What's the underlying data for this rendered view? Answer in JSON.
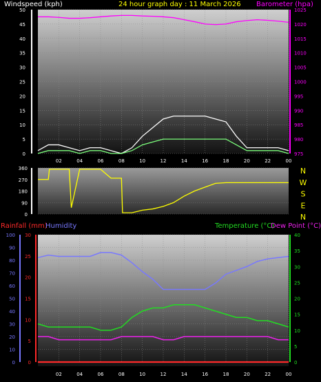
{
  "header": {
    "wind_label": "Windspeed (kph)",
    "title": "24 hour graph day : 11 March 2026",
    "baro_label": "Barometer (hpa)"
  },
  "lower_header": {
    "rain_label": "Rainfall (mm)",
    "hum_label": "Humidity",
    "temp_label": "Temperature (°C)",
    "dew_label": "Dew Point (°C)"
  },
  "colors": {
    "wind_label": "#ffffff",
    "title": "#ffff00",
    "barometer": "#ff00ff",
    "gust": "#ffffff",
    "wind_avg": "#7cff7c",
    "direction": "#ffff00",
    "rain": "#ff2a2a",
    "humidity": "#7878ff",
    "temperature": "#22dd22",
    "dewpoint": "#ee22ee"
  },
  "chart_data": [
    {
      "type": "line",
      "name": "wind-barometer",
      "x_ticks": [
        "02",
        "04",
        "06",
        "08",
        "10",
        "12",
        "14",
        "16",
        "18",
        "20",
        "22",
        "00"
      ],
      "left_axis": {
        "ticks": [
          "0",
          "5",
          "10",
          "15",
          "20",
          "25",
          "30",
          "35",
          "40",
          "45",
          "50"
        ],
        "ylim": [
          0,
          50
        ]
      },
      "right_axis": {
        "ticks": [
          "975",
          "980",
          "985",
          "990",
          "995",
          "1000",
          "1005",
          "1010",
          "1015",
          "1020",
          "1025"
        ],
        "ylim": [
          975,
          1025
        ]
      },
      "x_hours": [
        0,
        1,
        2,
        3,
        4,
        5,
        6,
        7,
        8,
        9,
        10,
        11,
        12,
        13,
        14,
        15,
        16,
        17,
        18,
        19,
        20,
        21,
        22,
        23,
        24
      ],
      "series": [
        {
          "name": "Barometer (hpa)",
          "axis": "right",
          "values": [
            1022.5,
            1022.5,
            1022.3,
            1022.0,
            1022.0,
            1022.2,
            1022.5,
            1022.8,
            1023.0,
            1023.0,
            1022.8,
            1022.7,
            1022.5,
            1022.2,
            1021.5,
            1020.8,
            1020.0,
            1019.8,
            1020.0,
            1020.8,
            1021.2,
            1021.5,
            1021.3,
            1021.0,
            1020.6
          ]
        },
        {
          "name": "Windspeed (kph)",
          "axis": "left",
          "role": "gust",
          "values": [
            1,
            3,
            3,
            2,
            1,
            2,
            2,
            1,
            0,
            2,
            6,
            9,
            12,
            13,
            13,
            13,
            13,
            12,
            11,
            6,
            2,
            2,
            2,
            2,
            1
          ]
        },
        {
          "name": "Windspeed (kph)",
          "axis": "left",
          "role": "average",
          "values": [
            0,
            1,
            1,
            1,
            0,
            1,
            1,
            0,
            0,
            1,
            3,
            4,
            5,
            5,
            5,
            5,
            5,
            5,
            5,
            3,
            1,
            1,
            1,
            1,
            0
          ]
        }
      ]
    },
    {
      "type": "line",
      "name": "wind-direction",
      "x_hours": [
        0,
        1,
        1.1,
        2,
        3,
        3.2,
        4,
        4.5,
        5,
        6,
        7,
        8,
        8.1,
        9,
        10,
        11,
        12,
        13,
        14,
        15,
        16,
        17,
        18,
        19,
        20,
        21,
        22,
        23,
        24
      ],
      "ticks": [
        "360",
        "270",
        "180",
        "90",
        "0"
      ],
      "ylim": [
        0,
        360
      ],
      "compass": [
        "N",
        "W",
        "S",
        "E",
        "N"
      ],
      "values": [
        270,
        270,
        350,
        350,
        350,
        50,
        350,
        350,
        350,
        350,
        280,
        280,
        10,
        10,
        30,
        40,
        60,
        90,
        140,
        180,
        210,
        240,
        245,
        245,
        245,
        245,
        245,
        245,
        245
      ]
    },
    {
      "type": "line",
      "name": "temp-humidity-rain",
      "x_ticks": [
        "02",
        "04",
        "06",
        "08",
        "10",
        "12",
        "14",
        "16",
        "18",
        "20",
        "22",
        "00"
      ],
      "humidity_axis": {
        "ticks": [
          "0",
          "10",
          "20",
          "30",
          "40",
          "50",
          "60",
          "70",
          "80",
          "90",
          "100"
        ],
        "ylim": [
          0,
          100
        ]
      },
      "rain_axis": {
        "ticks": [
          "0",
          "5",
          "10",
          "15",
          "20",
          "25",
          "30"
        ],
        "ylim": [
          0,
          30
        ]
      },
      "temp_axis": {
        "ticks": [
          "0",
          "5",
          "10",
          "15",
          "20",
          "25",
          "30",
          "35",
          "40"
        ],
        "ylim": [
          0,
          40
        ]
      },
      "x_hours": [
        0,
        1,
        2,
        3,
        4,
        5,
        6,
        7,
        8,
        9,
        10,
        11,
        12,
        13,
        14,
        15,
        16,
        17,
        18,
        19,
        20,
        21,
        22,
        23,
        24
      ],
      "series": [
        {
          "name": "Humidity",
          "axis": "humidity",
          "values": [
            82,
            84,
            83,
            83,
            83,
            83,
            86,
            86,
            84,
            78,
            71,
            65,
            57,
            57,
            57,
            57,
            57,
            62,
            69,
            72,
            75,
            79,
            81,
            82,
            83
          ]
        },
        {
          "name": "Temperature (°C)",
          "axis": "temp",
          "values": [
            12,
            11,
            11,
            11,
            11,
            11,
            10,
            10,
            11,
            14,
            16,
            17,
            17,
            18,
            18,
            18,
            17,
            16,
            15,
            14,
            14,
            13,
            13,
            12,
            11
          ]
        },
        {
          "name": "Dew Point (°C)",
          "axis": "temp",
          "values": [
            8,
            8,
            7,
            7,
            7,
            7,
            7,
            7,
            8,
            8,
            8,
            8,
            7,
            7,
            8,
            8,
            8,
            8,
            8,
            8,
            8,
            8,
            8,
            7,
            7
          ]
        },
        {
          "name": "Rainfall (mm)",
          "axis": "rain",
          "values": [
            0,
            0,
            0,
            0,
            0,
            0,
            0,
            0,
            0,
            0,
            0,
            0,
            0,
            0,
            0,
            0,
            0,
            0,
            0,
            0,
            0,
            0,
            0,
            0,
            0
          ]
        }
      ]
    }
  ]
}
